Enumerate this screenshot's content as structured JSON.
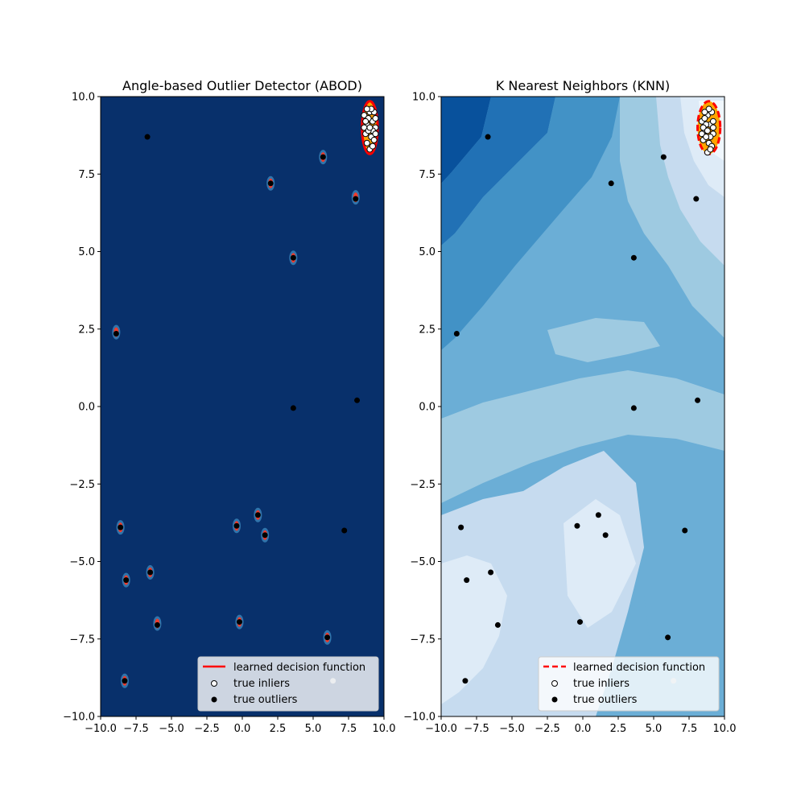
{
  "figure": {
    "background": "#ffffff"
  },
  "chart_data": [
    {
      "type": "scatter",
      "title": "Angle-based Outlier Detector (ABOD)",
      "xlabel": "",
      "ylabel": "",
      "xlim": [
        -10,
        10
      ],
      "ylim": [
        -10,
        10
      ],
      "xticks": [
        "−10.0",
        "−7.5",
        "−5.0",
        "−2.5",
        "0.0",
        "2.5",
        "5.0",
        "7.5",
        "10.0"
      ],
      "yticks": [
        "−10.0",
        "−7.5",
        "−5.0",
        "−2.5",
        "0.0",
        "2.5",
        "5.0",
        "7.5",
        "10.0"
      ],
      "background_color": "#08306b",
      "decision_boundary_style": "solid",
      "inlier_cluster": {
        "center": [
          9.0,
          9.0
        ],
        "radius": [
          0.55,
          0.85
        ]
      },
      "inliers": [
        [
          8.6,
          9.4
        ],
        [
          8.8,
          9.1
        ],
        [
          9.0,
          9.5
        ],
        [
          9.2,
          9.2
        ],
        [
          9.4,
          9.0
        ],
        [
          8.7,
          8.8
        ],
        [
          9.1,
          8.7
        ],
        [
          8.9,
          9.3
        ],
        [
          9.3,
          9.5
        ],
        [
          8.8,
          8.5
        ],
        [
          9.2,
          8.9
        ],
        [
          9.0,
          8.3
        ],
        [
          8.6,
          9.0
        ],
        [
          9.4,
          9.3
        ],
        [
          9.1,
          9.6
        ],
        [
          8.9,
          8.9
        ],
        [
          9.3,
          8.6
        ],
        [
          8.7,
          9.2
        ],
        [
          9.0,
          9.0
        ],
        [
          9.2,
          8.4
        ],
        [
          8.8,
          9.6
        ],
        [
          9.4,
          8.8
        ]
      ],
      "outliers": [
        [
          -6.7,
          8.7
        ],
        [
          5.7,
          8.05
        ],
        [
          2.0,
          7.2
        ],
        [
          8.0,
          6.7
        ],
        [
          3.6,
          4.8
        ],
        [
          -8.9,
          2.35
        ],
        [
          8.1,
          0.2
        ],
        [
          3.6,
          -0.05
        ],
        [
          1.1,
          -3.5
        ],
        [
          1.6,
          -4.15
        ],
        [
          -0.4,
          -3.85
        ],
        [
          -8.6,
          -3.9
        ],
        [
          7.2,
          -4.0
        ],
        [
          -6.5,
          -5.35
        ],
        [
          -8.2,
          -5.6
        ],
        [
          -6.0,
          -7.05
        ],
        [
          -0.2,
          -6.95
        ],
        [
          6.0,
          -7.45
        ],
        [
          -8.3,
          -8.85
        ]
      ],
      "outlier_halos": [
        [
          5.7,
          8.05
        ],
        [
          2.0,
          7.2
        ],
        [
          8.0,
          6.75
        ],
        [
          3.6,
          4.8
        ],
        [
          -8.9,
          2.4
        ],
        [
          1.1,
          -3.5
        ],
        [
          1.6,
          -4.15
        ],
        [
          -0.4,
          -3.85
        ],
        [
          -8.6,
          -3.9
        ],
        [
          -6.5,
          -5.35
        ],
        [
          -8.2,
          -5.6
        ],
        [
          -6.0,
          -7.0
        ],
        [
          -0.2,
          -6.95
        ],
        [
          6.0,
          -7.45
        ],
        [
          -8.3,
          -8.85
        ]
      ],
      "faint_point": [
        6.4,
        -8.85
      ],
      "legend": {
        "placement": "lower-right",
        "entries": [
          "learned decision function",
          "true inliers",
          "true outliers"
        ]
      }
    },
    {
      "type": "scatter",
      "title": "K Nearest Neighbors (KNN)",
      "xlabel": "",
      "ylabel": "",
      "xlim": [
        -10,
        10
      ],
      "ylim": [
        -10,
        10
      ],
      "xticks": [
        "−10.0",
        "−7.5",
        "−5.0",
        "−2.5",
        "0.0",
        "2.5",
        "5.0",
        "7.5",
        "10.0"
      ],
      "yticks": [
        "−10.0",
        "−7.5",
        "−5.0",
        "−2.5",
        "0.0",
        "2.5",
        "5.0",
        "7.5",
        "10.0"
      ],
      "background_color": "#6baed6",
      "decision_boundary_style": "dashed",
      "inlier_cluster": {
        "center": [
          8.9,
          9.0
        ],
        "radius": [
          0.8,
          0.85
        ]
      },
      "inliers": [
        [
          8.4,
          9.2
        ],
        [
          8.6,
          8.9
        ],
        [
          8.8,
          9.4
        ],
        [
          9.0,
          9.1
        ],
        [
          9.2,
          8.8
        ],
        [
          8.5,
          8.6
        ],
        [
          8.9,
          8.5
        ],
        [
          8.7,
          9.1
        ],
        [
          9.1,
          9.5
        ],
        [
          8.6,
          9.3
        ],
        [
          9.0,
          8.7
        ],
        [
          8.8,
          8.2
        ],
        [
          8.4,
          8.8
        ],
        [
          9.2,
          9.2
        ],
        [
          8.9,
          9.6
        ],
        [
          8.7,
          8.7
        ],
        [
          9.1,
          8.4
        ],
        [
          8.5,
          9.0
        ],
        [
          8.8,
          8.9
        ],
        [
          9.0,
          8.3
        ],
        [
          8.6,
          9.5
        ],
        [
          9.2,
          9.0
        ]
      ],
      "outliers": [
        [
          -6.7,
          8.7
        ],
        [
          5.7,
          8.05
        ],
        [
          2.0,
          7.2
        ],
        [
          8.0,
          6.7
        ],
        [
          3.6,
          4.8
        ],
        [
          -8.9,
          2.35
        ],
        [
          8.1,
          0.2
        ],
        [
          3.6,
          -0.05
        ],
        [
          1.1,
          -3.5
        ],
        [
          1.6,
          -4.15
        ],
        [
          -0.4,
          -3.85
        ],
        [
          -8.6,
          -3.9
        ],
        [
          7.2,
          -4.0
        ],
        [
          -6.5,
          -5.35
        ],
        [
          -8.2,
          -5.6
        ],
        [
          -6.0,
          -7.05
        ],
        [
          -0.2,
          -6.95
        ],
        [
          6.0,
          -7.45
        ],
        [
          -8.3,
          -8.85
        ]
      ],
      "faint_point": [
        6.4,
        -8.85
      ],
      "legend": {
        "placement": "lower-right",
        "entries": [
          "learned decision function",
          "true inliers",
          "true outliers"
        ]
      }
    }
  ]
}
